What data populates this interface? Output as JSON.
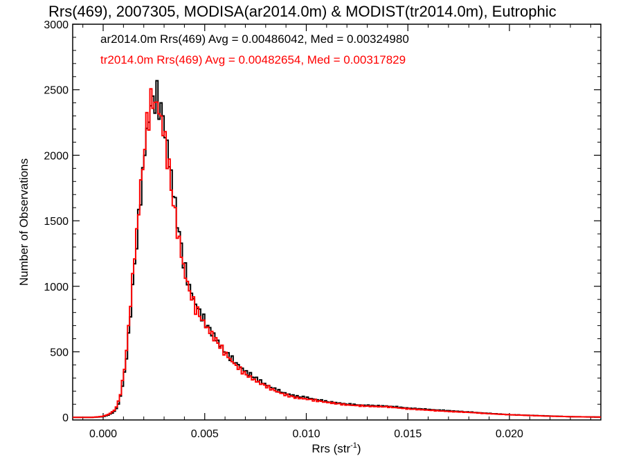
{
  "chart_data": {
    "type": "line",
    "title": "Rrs(469), 2007305, MODISA(ar2014.0m) & MODIST(tr2014.0m), Eutrophic",
    "xlabel": "Rrs (str",
    "xlabel_sup": "-1",
    "xlabel_end": ")",
    "ylabel": "Number of Observations",
    "xlim": [
      -0.0015,
      0.0245
    ],
    "ylim": [
      -20,
      3000
    ],
    "xticks": [
      0.0,
      0.005,
      0.01,
      0.015,
      0.02
    ],
    "xtick_labels": [
      "0.000",
      "0.005",
      "0.010",
      "0.015",
      "0.020"
    ],
    "yticks": [
      0,
      500,
      1000,
      1500,
      2000,
      2500,
      3000
    ],
    "ytick_labels": [
      "0",
      "500",
      "1000",
      "1500",
      "2000",
      "2500",
      "3000"
    ],
    "grid": false,
    "legend_position": "top-left",
    "series": [
      {
        "name": "ar2014.0m Rrs(469) Avg = 0.00486042, Med = 0.00324980",
        "color": "#000000",
        "points": [
          [
            -0.0015,
            0
          ],
          [
            -0.0005,
            0
          ],
          [
            0.0,
            5
          ],
          [
            0.0003,
            20
          ],
          [
            0.0006,
            50
          ],
          [
            0.0008,
            120
          ],
          [
            0.001,
            280
          ],
          [
            0.0012,
            520
          ],
          [
            0.0014,
            900
          ],
          [
            0.0016,
            1250
          ],
          [
            0.0018,
            1600
          ],
          [
            0.002,
            1950
          ],
          [
            0.0022,
            2250
          ],
          [
            0.0024,
            2400
          ],
          [
            0.0026,
            2440
          ],
          [
            0.0028,
            2380
          ],
          [
            0.003,
            2250
          ],
          [
            0.0032,
            2000
          ],
          [
            0.0034,
            1800
          ],
          [
            0.0036,
            1550
          ],
          [
            0.0038,
            1350
          ],
          [
            0.004,
            1150
          ],
          [
            0.0042,
            1020
          ],
          [
            0.0045,
            880
          ],
          [
            0.005,
            730
          ],
          [
            0.0055,
            610
          ],
          [
            0.006,
            500
          ],
          [
            0.0065,
            420
          ],
          [
            0.007,
            350
          ],
          [
            0.0075,
            300
          ],
          [
            0.008,
            250
          ],
          [
            0.0085,
            210
          ],
          [
            0.009,
            180
          ],
          [
            0.0095,
            160
          ],
          [
            0.01,
            150
          ],
          [
            0.011,
            120
          ],
          [
            0.012,
            100
          ],
          [
            0.013,
            90
          ],
          [
            0.014,
            85
          ],
          [
            0.015,
            70
          ],
          [
            0.016,
            60
          ],
          [
            0.017,
            50
          ],
          [
            0.018,
            40
          ],
          [
            0.019,
            30
          ],
          [
            0.02,
            20
          ],
          [
            0.021,
            15
          ],
          [
            0.022,
            10
          ],
          [
            0.023,
            5
          ],
          [
            0.0245,
            2
          ]
        ]
      },
      {
        "name": "tr2014.0m Rrs(469) Avg = 0.00482654, Med = 0.00317829",
        "color": "#ff0000",
        "points": [
          [
            -0.0015,
            0
          ],
          [
            -0.0005,
            0
          ],
          [
            0.0,
            8
          ],
          [
            0.0003,
            25
          ],
          [
            0.0006,
            60
          ],
          [
            0.0008,
            140
          ],
          [
            0.001,
            310
          ],
          [
            0.0012,
            580
          ],
          [
            0.0014,
            980
          ],
          [
            0.0016,
            1320
          ],
          [
            0.0018,
            1680
          ],
          [
            0.002,
            2000
          ],
          [
            0.0022,
            2300
          ],
          [
            0.0024,
            2420
          ],
          [
            0.0026,
            2400
          ],
          [
            0.0028,
            2320
          ],
          [
            0.003,
            2150
          ],
          [
            0.0032,
            1950
          ],
          [
            0.0034,
            1700
          ],
          [
            0.0036,
            1480
          ],
          [
            0.0038,
            1290
          ],
          [
            0.004,
            1110
          ],
          [
            0.0042,
            990
          ],
          [
            0.0045,
            850
          ],
          [
            0.005,
            710
          ],
          [
            0.0055,
            600
          ],
          [
            0.006,
            490
          ],
          [
            0.0065,
            400
          ],
          [
            0.007,
            330
          ],
          [
            0.0075,
            280
          ],
          [
            0.008,
            240
          ],
          [
            0.0085,
            200
          ],
          [
            0.009,
            170
          ],
          [
            0.0095,
            150
          ],
          [
            0.01,
            140
          ],
          [
            0.011,
            115
          ],
          [
            0.012,
            95
          ],
          [
            0.013,
            85
          ],
          [
            0.014,
            80
          ],
          [
            0.015,
            65
          ],
          [
            0.016,
            55
          ],
          [
            0.017,
            45
          ],
          [
            0.018,
            38
          ],
          [
            0.019,
            28
          ],
          [
            0.02,
            20
          ],
          [
            0.021,
            14
          ],
          [
            0.022,
            9
          ],
          [
            0.023,
            5
          ],
          [
            0.0245,
            2
          ]
        ]
      }
    ]
  }
}
